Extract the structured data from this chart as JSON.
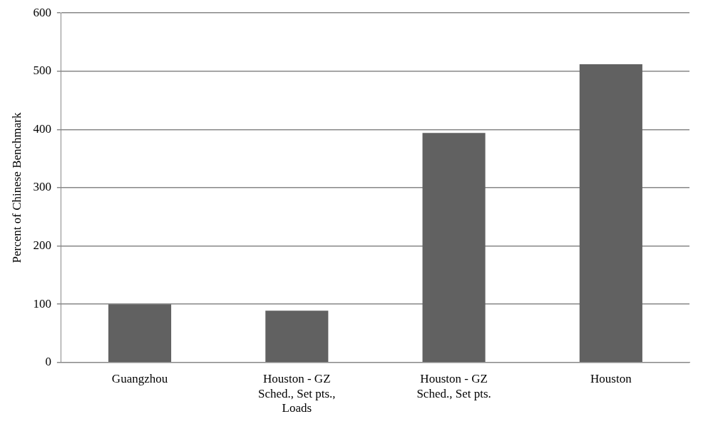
{
  "chart_data": {
    "type": "bar",
    "ylabel": "Percent of Chinese Benchmark",
    "categories": [
      "Guangzhou",
      "Houston - GZ\nSched., Set pts.,\nLoads",
      "Houston - GZ\nSched., Set pts.",
      "Houston"
    ],
    "values": [
      100,
      89,
      394,
      512
    ],
    "color": "#616161",
    "ylim": [
      0,
      600
    ],
    "yticks": [
      0,
      100,
      200,
      300,
      400,
      500,
      600
    ],
    "grid": "y",
    "legend": false
  }
}
